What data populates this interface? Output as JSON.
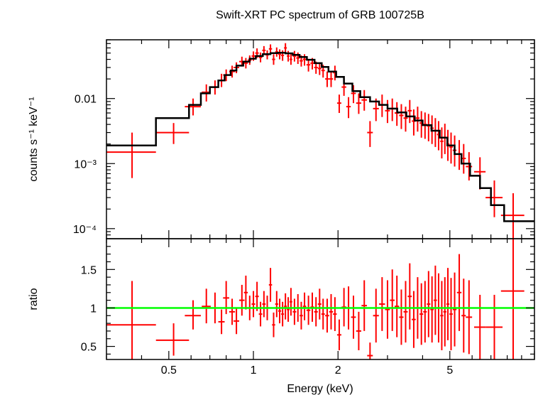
{
  "chart_data": [
    {
      "type": "scatter",
      "title": "Swift-XRT PC spectrum of GRB 100725B",
      "xlabel": "Energy (keV)",
      "ylabel": "counts s⁻¹ keV⁻¹",
      "xscale": "log",
      "yscale": "log",
      "xlim": [
        0.3,
        10
      ],
      "ylim": [
        7e-05,
        0.08
      ],
      "ytick_labels": [
        "10⁻⁴",
        "10⁻³",
        "0.01"
      ],
      "ytick_values": [
        0.0001,
        0.001,
        0.01
      ],
      "colors": {
        "data": "#ff0000",
        "model": "#000000"
      },
      "series": [
        {
          "kind": "errorbars",
          "x": [
            0.37,
            0.52,
            0.61,
            0.68,
            0.73,
            0.77,
            0.8,
            0.84,
            0.87,
            0.91,
            0.94,
            0.97,
            1.0,
            1.03,
            1.06,
            1.09,
            1.12,
            1.15,
            1.18,
            1.21,
            1.24,
            1.27,
            1.3,
            1.33,
            1.36,
            1.4,
            1.44,
            1.48,
            1.52,
            1.57,
            1.62,
            1.67,
            1.72,
            1.77,
            1.83,
            1.89,
            1.95,
            2.02,
            2.1,
            2.18,
            2.27,
            2.37,
            2.48,
            2.6,
            2.73,
            2.87,
            3.0,
            3.12,
            3.24,
            3.36,
            3.48,
            3.6,
            3.72,
            3.84,
            3.96,
            4.08,
            4.2,
            4.32,
            4.44,
            4.56,
            4.68,
            4.8,
            4.92,
            5.05,
            5.2,
            5.4,
            5.6,
            5.85,
            6.4,
            7.2,
            8.4
          ],
          "y": [
            0.0015,
            0.003,
            0.0075,
            0.0125,
            0.015,
            0.019,
            0.023,
            0.026,
            0.03,
            0.037,
            0.035,
            0.039,
            0.045,
            0.05,
            0.043,
            0.055,
            0.047,
            0.058,
            0.04,
            0.052,
            0.048,
            0.046,
            0.06,
            0.045,
            0.04,
            0.045,
            0.042,
            0.038,
            0.04,
            0.033,
            0.035,
            0.03,
            0.029,
            0.027,
            0.02,
            0.02,
            0.025,
            0.0085,
            0.015,
            0.0075,
            0.012,
            0.0085,
            0.0095,
            0.003,
            0.007,
            0.008,
            0.0065,
            0.007,
            0.006,
            0.0055,
            0.005,
            0.0065,
            0.0045,
            0.005,
            0.0042,
            0.004,
            0.0038,
            0.0035,
            0.0032,
            0.0028,
            0.0022,
            0.0025,
            0.002,
            0.0018,
            0.0016,
            0.0014,
            0.0012,
            0.0009,
            0.00075,
            0.0003,
            0.00016
          ],
          "xerr": [
            0.08,
            0.07,
            0.04,
            0.025,
            0.02,
            0.02,
            0.02,
            0.02,
            0.02,
            0.02,
            0.015,
            0.015,
            0.015,
            0.015,
            0.015,
            0.015,
            0.015,
            0.015,
            0.015,
            0.015,
            0.015,
            0.015,
            0.015,
            0.015,
            0.015,
            0.02,
            0.02,
            0.02,
            0.02,
            0.025,
            0.025,
            0.025,
            0.025,
            0.025,
            0.03,
            0.03,
            0.03,
            0.035,
            0.04,
            0.04,
            0.045,
            0.05,
            0.055,
            0.06,
            0.065,
            0.07,
            0.06,
            0.06,
            0.06,
            0.06,
            0.06,
            0.06,
            0.06,
            0.06,
            0.06,
            0.06,
            0.06,
            0.06,
            0.06,
            0.06,
            0.06,
            0.06,
            0.06,
            0.07,
            0.08,
            0.1,
            0.1,
            0.15,
            0.3,
            0.5,
            0.8
          ],
          "ylo": [
            0.0006,
            0.002,
            0.0055,
            0.009,
            0.0115,
            0.015,
            0.0185,
            0.021,
            0.0245,
            0.031,
            0.029,
            0.033,
            0.038,
            0.042,
            0.036,
            0.047,
            0.04,
            0.049,
            0.033,
            0.044,
            0.04,
            0.038,
            0.05,
            0.037,
            0.033,
            0.037,
            0.034,
            0.031,
            0.032,
            0.026,
            0.028,
            0.024,
            0.023,
            0.021,
            0.015,
            0.015,
            0.019,
            0.006,
            0.011,
            0.005,
            0.0085,
            0.0058,
            0.0065,
            0.0018,
            0.0045,
            0.0052,
            0.0042,
            0.0045,
            0.0038,
            0.0034,
            0.0031,
            0.0042,
            0.0027,
            0.0031,
            0.0025,
            0.0024,
            0.0022,
            0.002,
            0.0018,
            0.0016,
            0.0012,
            0.0014,
            0.0011,
            0.001,
            0.0009,
            0.0008,
            0.0007,
            0.00055,
            0.0004,
            0.00015,
            6e-05
          ],
          "yhi": [
            0.003,
            0.0042,
            0.01,
            0.0165,
            0.019,
            0.024,
            0.028,
            0.032,
            0.036,
            0.044,
            0.042,
            0.046,
            0.053,
            0.059,
            0.051,
            0.064,
            0.055,
            0.068,
            0.048,
            0.061,
            0.057,
            0.055,
            0.071,
            0.054,
            0.048,
            0.054,
            0.051,
            0.046,
            0.048,
            0.04,
            0.042,
            0.037,
            0.036,
            0.033,
            0.026,
            0.026,
            0.032,
            0.0115,
            0.02,
            0.0105,
            0.016,
            0.012,
            0.0135,
            0.0045,
            0.01,
            0.0115,
            0.0095,
            0.01,
            0.0088,
            0.0082,
            0.0075,
            0.0095,
            0.0068,
            0.0075,
            0.0064,
            0.0061,
            0.0058,
            0.0055,
            0.005,
            0.0045,
            0.0036,
            0.0041,
            0.0033,
            0.003,
            0.0027,
            0.0023,
            0.002,
            0.0015,
            0.00125,
            0.00055,
            0.00035
          ]
        },
        {
          "kind": "step",
          "x_edges": [
            0.3,
            0.45,
            0.59,
            0.65,
            0.7,
            0.75,
            0.79,
            0.83,
            0.87,
            0.92,
            0.97,
            1.02,
            1.08,
            1.15,
            1.22,
            1.3,
            1.38,
            1.46,
            1.55,
            1.65,
            1.75,
            1.85,
            1.97,
            2.1,
            2.25,
            2.4,
            2.6,
            2.8,
            3.0,
            3.25,
            3.5,
            3.75,
            4.0,
            4.3,
            4.6,
            4.9,
            5.2,
            5.5,
            5.9,
            6.4,
            7.0,
            7.8,
            10.0
          ],
          "y": [
            0.0019,
            0.005,
            0.008,
            0.012,
            0.015,
            0.019,
            0.023,
            0.027,
            0.032,
            0.037,
            0.041,
            0.045,
            0.048,
            0.05,
            0.0505,
            0.0495,
            0.047,
            0.0435,
            0.0395,
            0.035,
            0.0305,
            0.026,
            0.0215,
            0.017,
            0.013,
            0.0105,
            0.009,
            0.008,
            0.007,
            0.0061,
            0.0053,
            0.0046,
            0.0039,
            0.0032,
            0.0025,
            0.0019,
            0.0014,
            0.001,
            0.00065,
            0.00042,
            0.00023,
            0.00013
          ]
        }
      ]
    },
    {
      "type": "scatter",
      "xlabel": "Energy (keV)",
      "ylabel": "ratio",
      "xscale": "log",
      "xlim": [
        0.3,
        10
      ],
      "ylim": [
        0.33,
        1.9
      ],
      "ytick_labels": [
        "0.5",
        "1",
        "1.5"
      ],
      "ytick_values": [
        0.5,
        1,
        1.5
      ],
      "xtick_labels": [
        "0.5",
        "1",
        "2",
        "5"
      ],
      "xtick_values": [
        0.5,
        1,
        2,
        5
      ],
      "reference_line": {
        "y": 1,
        "color": "#00ff00"
      },
      "colors": {
        "data": "#ff0000"
      },
      "series": [
        {
          "kind": "errorbars",
          "x": [
            0.37,
            0.52,
            0.61,
            0.68,
            0.73,
            0.77,
            0.8,
            0.84,
            0.87,
            0.91,
            0.94,
            0.97,
            1.0,
            1.03,
            1.06,
            1.09,
            1.12,
            1.15,
            1.18,
            1.21,
            1.24,
            1.27,
            1.3,
            1.33,
            1.36,
            1.4,
            1.44,
            1.48,
            1.52,
            1.57,
            1.62,
            1.67,
            1.72,
            1.77,
            1.83,
            1.89,
            1.95,
            2.02,
            2.1,
            2.18,
            2.27,
            2.37,
            2.48,
            2.6,
            2.73,
            2.87,
            3.0,
            3.12,
            3.24,
            3.36,
            3.48,
            3.6,
            3.72,
            3.84,
            3.96,
            4.08,
            4.2,
            4.32,
            4.44,
            4.56,
            4.68,
            4.8,
            4.92,
            5.05,
            5.2,
            5.4,
            5.6,
            5.85,
            6.4,
            7.2,
            8.4
          ],
          "y": [
            0.78,
            0.58,
            0.9,
            1.02,
            1.0,
            0.82,
            1.13,
            0.95,
            0.83,
            1.1,
            1.2,
            1.0,
            1.05,
            1.15,
            0.92,
            1.05,
            1.0,
            1.3,
            0.78,
            1.05,
            0.96,
            0.92,
            1.02,
            0.98,
            1.08,
            0.95,
            1.0,
            0.9,
            1.02,
            0.97,
            1.01,
            0.95,
            1.05,
            0.92,
            0.9,
            0.95,
            0.92,
            0.65,
            1.01,
            1.0,
            0.88,
            0.7,
            1.03,
            0.38,
            0.9,
            1.05,
            0.98,
            1.1,
            1.02,
            0.88,
            0.95,
            1.15,
            0.85,
            1.0,
            0.92,
            0.95,
            1.05,
            0.98,
            1.1,
            1.0,
            0.9,
            0.95,
            1.05,
            0.92,
            0.98,
            1.2,
            0.9,
            0.88,
            0.75,
            0.75,
            1.22
          ],
          "xerr": [
            0.08,
            0.07,
            0.04,
            0.025,
            0.02,
            0.02,
            0.02,
            0.02,
            0.02,
            0.02,
            0.015,
            0.015,
            0.015,
            0.015,
            0.015,
            0.015,
            0.015,
            0.015,
            0.015,
            0.015,
            0.015,
            0.015,
            0.015,
            0.015,
            0.015,
            0.02,
            0.02,
            0.02,
            0.02,
            0.025,
            0.025,
            0.025,
            0.025,
            0.025,
            0.03,
            0.03,
            0.03,
            0.035,
            0.04,
            0.04,
            0.045,
            0.05,
            0.055,
            0.06,
            0.065,
            0.07,
            0.06,
            0.06,
            0.06,
            0.06,
            0.06,
            0.06,
            0.06,
            0.06,
            0.06,
            0.06,
            0.06,
            0.06,
            0.06,
            0.06,
            0.06,
            0.06,
            0.06,
            0.07,
            0.08,
            0.1,
            0.1,
            0.15,
            0.3,
            0.5,
            0.8
          ],
          "ylo": [
            0.33,
            0.38,
            0.72,
            0.8,
            0.8,
            0.66,
            0.92,
            0.78,
            0.66,
            0.9,
            0.98,
            0.84,
            0.88,
            0.96,
            0.76,
            0.88,
            0.84,
            1.08,
            0.62,
            0.88,
            0.8,
            0.76,
            0.85,
            0.82,
            0.9,
            0.78,
            0.82,
            0.72,
            0.84,
            0.78,
            0.82,
            0.76,
            0.85,
            0.72,
            0.68,
            0.72,
            0.7,
            0.45,
            0.76,
            0.72,
            0.6,
            0.45,
            0.7,
            0.33,
            0.55,
            0.7,
            0.6,
            0.7,
            0.62,
            0.52,
            0.55,
            0.72,
            0.48,
            0.6,
            0.52,
            0.55,
            0.62,
            0.55,
            0.65,
            0.55,
            0.45,
            0.5,
            0.58,
            0.45,
            0.5,
            0.7,
            0.42,
            0.4,
            0.33,
            0.33,
            0.33
          ],
          "yhi": [
            1.35,
            0.8,
            1.1,
            1.25,
            1.2,
            0.98,
            1.35,
            1.12,
            1.0,
            1.3,
            1.42,
            1.16,
            1.22,
            1.34,
            1.08,
            1.22,
            1.16,
            1.52,
            0.94,
            1.22,
            1.12,
            1.08,
            1.19,
            1.14,
            1.26,
            1.12,
            1.18,
            1.08,
            1.2,
            1.16,
            1.2,
            1.14,
            1.25,
            1.12,
            1.12,
            1.18,
            1.14,
            0.85,
            1.26,
            1.28,
            1.16,
            0.95,
            1.36,
            0.55,
            1.25,
            1.4,
            1.36,
            1.5,
            1.42,
            1.24,
            1.35,
            1.58,
            1.22,
            1.4,
            1.32,
            1.35,
            1.48,
            1.41,
            1.55,
            1.45,
            1.35,
            1.4,
            1.52,
            1.39,
            1.46,
            1.7,
            1.38,
            1.36,
            1.17,
            1.17,
            1.9
          ]
        }
      ]
    }
  ]
}
